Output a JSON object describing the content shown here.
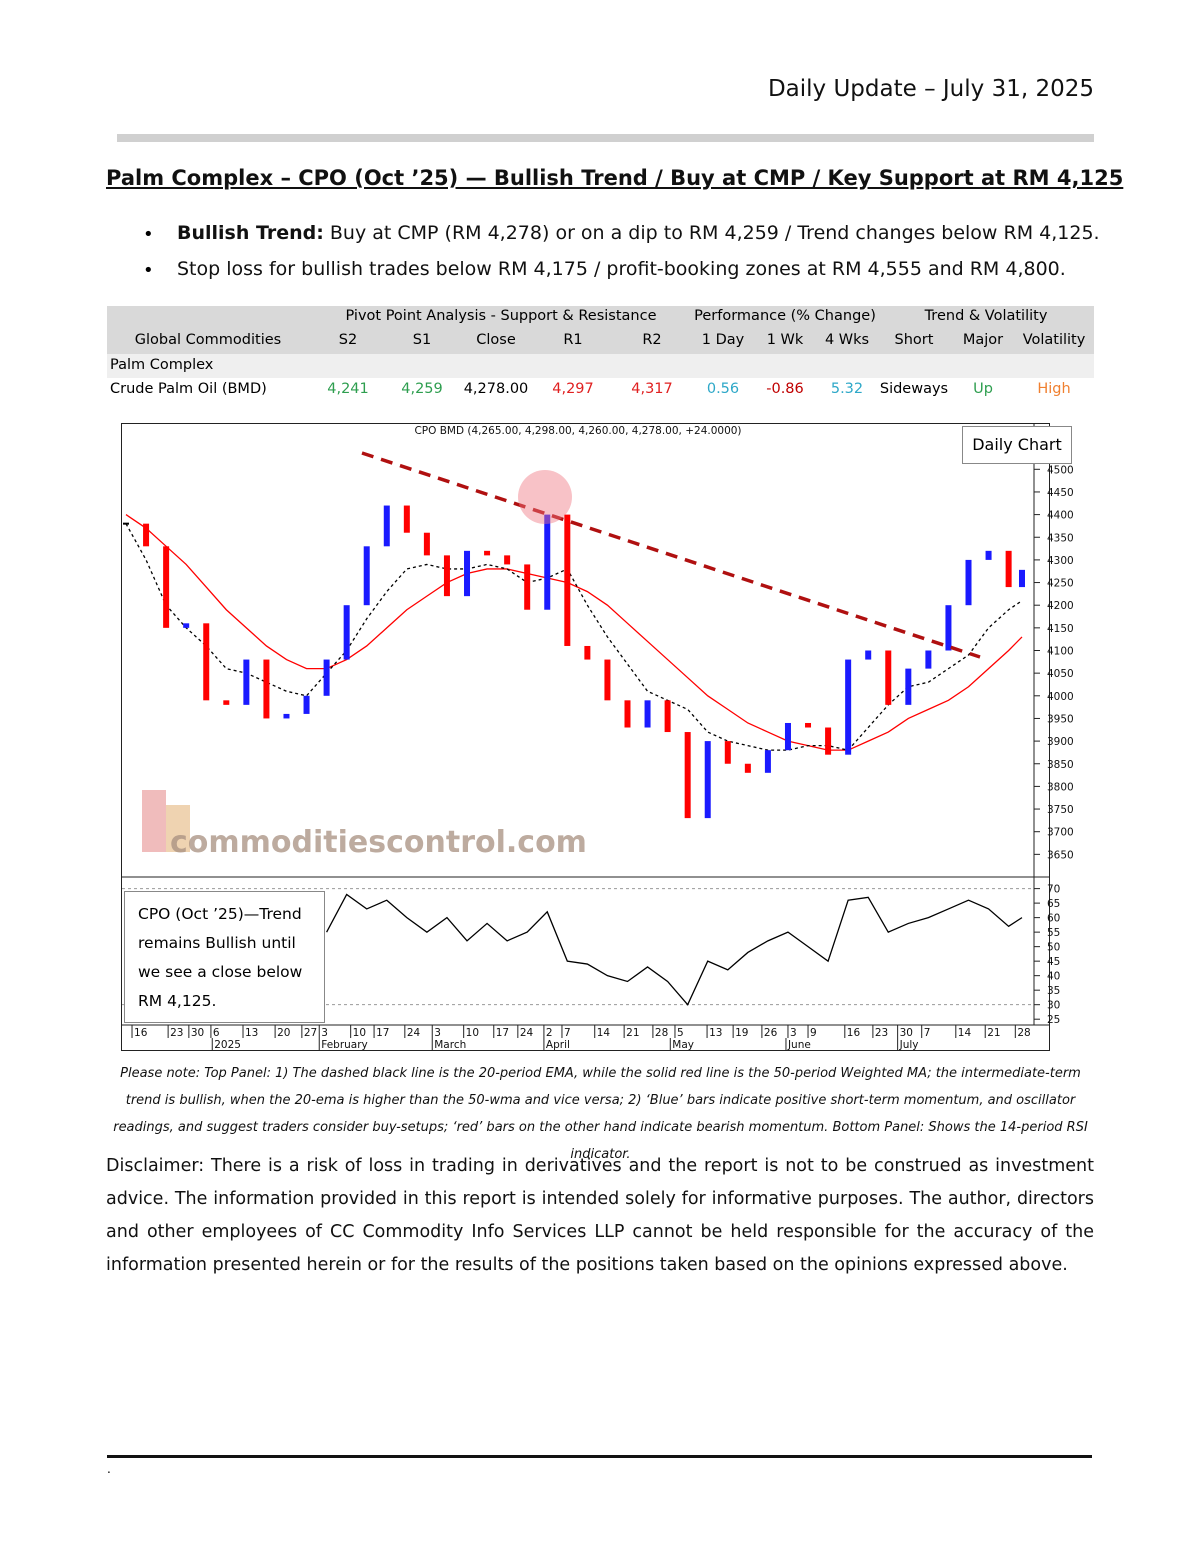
{
  "header": {
    "date": "Daily Update – July 31, 2025"
  },
  "title": "Palm Complex – CPO (Oct ’25) — Bullish Trend / Buy at CMP / Key Support at RM 4,125",
  "bullets": [
    {
      "bold": "Bullish Trend:",
      "text": " Buy at CMP (RM 4,278) or on a dip to RM 4,259 / Trend changes below RM 4,125."
    },
    {
      "text": "Stop loss for bullish trades below RM 4,175 / profit-booking zones at RM 4,555 and RM 4,800."
    }
  ],
  "table": {
    "groups": [
      "Pivot Point Analysis - Support & Resistance",
      "Performance (% Change)",
      "Trend & Volatility"
    ],
    "columns": [
      "Global Commodities",
      "S2",
      "S1",
      "Close",
      "R1",
      "R2",
      "1 Day",
      "1 Wk",
      "4 Wks",
      "Short",
      "Major",
      "Volatility"
    ],
    "section": "Palm Complex",
    "rows": [
      {
        "cells": [
          "Crude Palm Oil (BMD)",
          "4,241",
          "4,259",
          "4,278.00",
          "4,297",
          "4,317",
          "0.56",
          "-0.86",
          "5.32",
          "Sideways",
          "Up",
          "High"
        ],
        "colors": [
          "#000000",
          "#2e9e4f",
          "#2e9e4f",
          "#000000",
          "#e02020",
          "#e02020",
          "#2ea8c8",
          "#c00000",
          "#2ea8c8",
          "#000000",
          "#2e9e4f",
          "#f08030"
        ]
      }
    ]
  },
  "chart_data": {
    "type": "candlestick",
    "title": "CPO BMD (4,265.00, 4,298.00, 4,260.00, 4,278.00, +24.0000)",
    "label": "Daily Chart",
    "watermark": "commoditiescontrol.com",
    "annotation": "CPO (Oct ’25)—Trend remains Bullish until we see a close below RM 4,125.",
    "x": [
      0,
      3,
      6,
      9,
      12,
      15,
      18,
      21,
      24,
      27,
      30,
      33,
      36,
      39,
      42,
      45,
      48,
      51,
      54,
      57,
      60,
      63,
      66,
      69,
      72,
      75,
      78,
      81,
      84,
      87,
      90,
      93,
      96,
      99,
      102,
      105,
      108,
      111,
      114,
      117,
      120,
      123,
      126,
      129,
      132,
      134
    ],
    "xlim": [
      0,
      134
    ],
    "xticks": [
      {
        "value": 0.9,
        "label": "16"
      },
      {
        "value": 6.3,
        "label": "23"
      },
      {
        "value": 9.4,
        "label": "30"
      },
      {
        "value": 12.7,
        "label": "6"
      },
      {
        "value": 17.5,
        "label": "13"
      },
      {
        "value": 22.3,
        "label": "20"
      },
      {
        "value": 26.3,
        "label": "27"
      },
      {
        "value": 28.9,
        "label": "3"
      },
      {
        "value": 33.6,
        "label": "10"
      },
      {
        "value": 37.1,
        "label": "17"
      },
      {
        "value": 41.7,
        "label": "24"
      },
      {
        "value": 45.8,
        "label": "3"
      },
      {
        "value": 50.5,
        "label": "10"
      },
      {
        "value": 55.0,
        "label": "17"
      },
      {
        "value": 58.6,
        "label": "24"
      },
      {
        "value": 62.5,
        "label": "2"
      },
      {
        "value": 65.2,
        "label": "7"
      },
      {
        "value": 70.1,
        "label": "14"
      },
      {
        "value": 74.5,
        "label": "21"
      },
      {
        "value": 78.8,
        "label": "28"
      },
      {
        "value": 82.1,
        "label": "5"
      },
      {
        "value": 86.9,
        "label": "13"
      },
      {
        "value": 90.8,
        "label": "19"
      },
      {
        "value": 95.1,
        "label": "26"
      },
      {
        "value": 99.0,
        "label": "3"
      },
      {
        "value": 102.0,
        "label": "9"
      },
      {
        "value": 107.5,
        "label": "16"
      },
      {
        "value": 111.7,
        "label": "23"
      },
      {
        "value": 115.4,
        "label": "30"
      },
      {
        "value": 119.0,
        "label": "7"
      },
      {
        "value": 124.1,
        "label": "14"
      },
      {
        "value": 128.5,
        "label": "21"
      },
      {
        "value": 133.0,
        "label": "28"
      }
    ],
    "month_ticks": [
      {
        "value": 12.9,
        "label": "2025"
      },
      {
        "value": 28.9,
        "label": "February"
      },
      {
        "value": 45.8,
        "label": "March"
      },
      {
        "value": 62.5,
        "label": "April"
      },
      {
        "value": 81.4,
        "label": "May"
      },
      {
        "value": 98.7,
        "label": "June"
      },
      {
        "value": 115.4,
        "label": "July"
      }
    ],
    "ylim": [
      3600,
      4600
    ],
    "yticks": [
      3650,
      3700,
      3750,
      3800,
      3850,
      3900,
      3950,
      4000,
      4050,
      4100,
      4150,
      4200,
      4250,
      4300,
      4350,
      4400,
      4450,
      4500
    ],
    "candles": {
      "up_color": "#1a1aff",
      "down_color": "#ff0000",
      "values": [
        4380,
        4330,
        4150,
        4160,
        3990,
        3980,
        4080,
        3950,
        3960,
        4000,
        4080,
        4200,
        4330,
        4420,
        4360,
        4310,
        4220,
        4320,
        4310,
        4290,
        4190,
        4400,
        4110,
        4080,
        3990,
        3930,
        3990,
        3920,
        3730,
        3900,
        3850,
        3830,
        3880,
        3940,
        3930,
        3870,
        4080,
        4100,
        3980,
        4060,
        4100,
        4200,
        4300,
        4320,
        4240,
        4278
      ]
    },
    "ema": {
      "color": "#000000",
      "dashed": true,
      "values": [
        4380,
        4300,
        4200,
        4150,
        4110,
        4060,
        4050,
        4030,
        4010,
        4000,
        4050,
        4100,
        4170,
        4230,
        4280,
        4290,
        4280,
        4280,
        4290,
        4280,
        4250,
        4260,
        4280,
        4200,
        4130,
        4070,
        4010,
        3990,
        3970,
        3920,
        3900,
        3890,
        3880,
        3880,
        3890,
        3890,
        3880,
        3930,
        3980,
        4020,
        4030,
        4060,
        4090,
        4150,
        4190,
        4210
      ]
    },
    "wma": {
      "color": "#ff0000",
      "dashed": false,
      "values": [
        4400,
        4370,
        4330,
        4290,
        4240,
        4190,
        4150,
        4110,
        4080,
        4060,
        4060,
        4080,
        4110,
        4150,
        4190,
        4220,
        4250,
        4270,
        4280,
        4280,
        4270,
        4260,
        4250,
        4230,
        4200,
        4160,
        4120,
        4080,
        4040,
        4000,
        3970,
        3940,
        3920,
        3900,
        3890,
        3880,
        3880,
        3900,
        3920,
        3950,
        3970,
        3990,
        4020,
        4060,
        4100,
        4130
      ]
    },
    "rsi": {
      "color": "#000000",
      "ylim": [
        23,
        74
      ],
      "yticks": [
        25,
        30,
        35,
        40,
        45,
        50,
        55,
        60,
        65,
        70
      ],
      "levels": [
        70,
        30
      ],
      "values": [
        null,
        null,
        null,
        null,
        null,
        null,
        null,
        null,
        null,
        null,
        55,
        68,
        63,
        66,
        60,
        55,
        60,
        52,
        58,
        52,
        55,
        62,
        45,
        44,
        40,
        38,
        43,
        38,
        30,
        45,
        42,
        48,
        52,
        55,
        50,
        45,
        66,
        67,
        55,
        58,
        60,
        63,
        66,
        63,
        57,
        60
      ]
    }
  },
  "note": "Please note: Top Panel: 1) The dashed black line is the 20-period EMA, while the solid red line is the 50-period Weighted MA; the intermediate-term trend is bullish, when the 20-ema is higher than the 50-wma and vice versa; 2) ‘Blue’ bars indicate positive short-term momentum, and oscillator readings, and suggest traders consider buy-setups; ‘red’ bars on the other hand indicate bearish momentum. Bottom Panel: Shows the 14-period RSI indicator.",
  "disclaimer": "Disclaimer: There is a risk of loss in trading in derivatives and the report is not to be construed as investment advice. The information provided in this report is intended solely for informative purposes. The author, directors and other employees of CC Commodity Info Services LLP cannot be held responsible for the accuracy of the information presented herein or for the results of the positions taken based on the opinions expressed above.",
  "footer": "."
}
